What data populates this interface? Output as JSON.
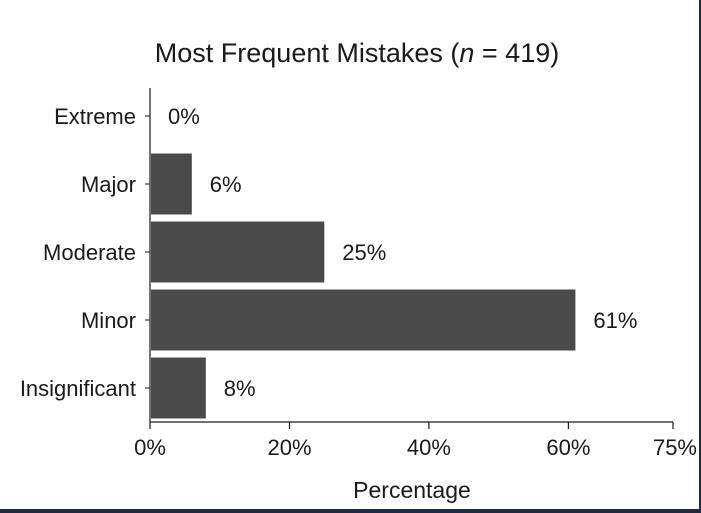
{
  "chart_data": {
    "type": "bar",
    "orientation": "horizontal",
    "title_main": "Most Frequent Mistakes (",
    "title_n_symbol": "n",
    "title_rest": " = 419)",
    "categories": [
      "Extreme",
      "Major",
      "Moderate",
      "Minor",
      "Insignificant"
    ],
    "values": [
      0,
      6,
      25,
      61,
      8
    ],
    "value_labels": [
      "0%",
      "6%",
      "25%",
      "61%",
      "8%"
    ],
    "xlabel": "Percentage",
    "ylabel": "",
    "xlim": [
      0,
      75
    ],
    "xticks": [
      0,
      20,
      40,
      60,
      75
    ],
    "xtick_labels": [
      "0%",
      "20%",
      "40%",
      "60%",
      "75%"
    ],
    "bar_color": "#4a4a4a",
    "grid": false
  }
}
